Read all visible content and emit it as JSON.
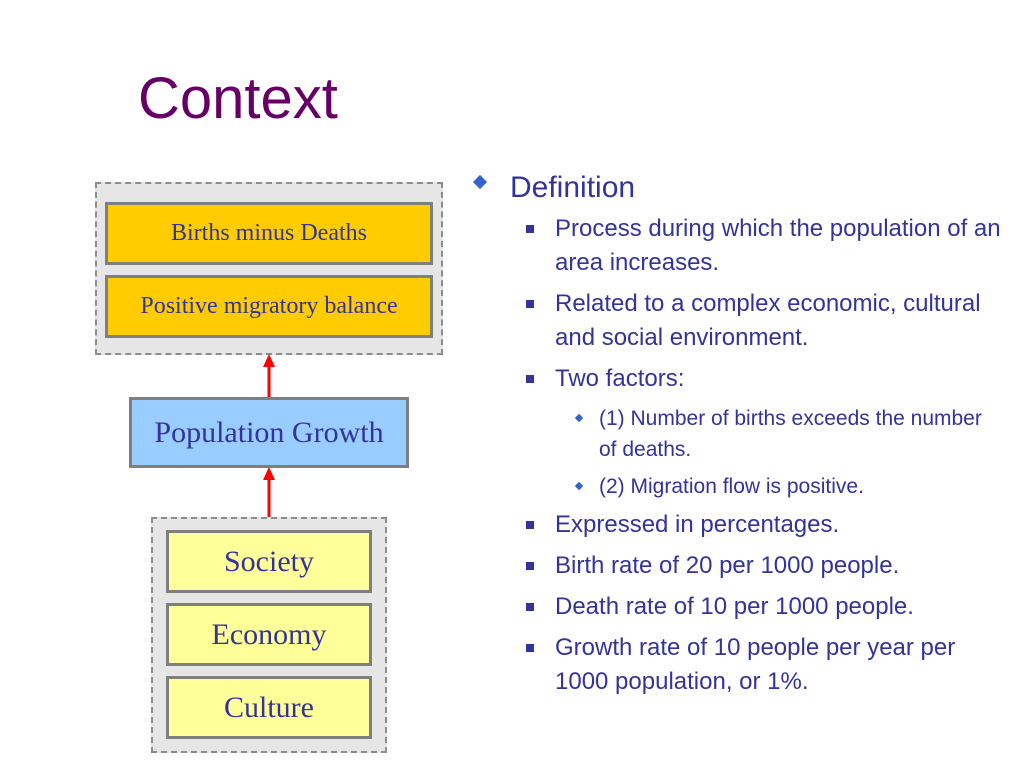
{
  "slide": {
    "title": "Context"
  },
  "diagram": {
    "top_group": {
      "items": [
        "Births minus Deaths",
        "Positive migratory balance"
      ]
    },
    "center": {
      "label": "Population Growth"
    },
    "bottom_group": {
      "items": [
        "Society",
        "Economy",
        "Culture"
      ]
    },
    "colors": {
      "top_boxes": "#ffcc00",
      "center_box": "#99ccff",
      "bottom_boxes": "#ffff99",
      "arrows": "#ff0000",
      "text": "#333399",
      "title": "#660066"
    }
  },
  "bullets": {
    "heading": "Definition",
    "items": [
      {
        "text": "Process during which the population of an area increases."
      },
      {
        "text": "Related to a complex economic, cultural and social environment."
      },
      {
        "text": "Two factors:"
      },
      {
        "text": "(1) Number of births exceeds the number of deaths."
      },
      {
        "text": "(2) Migration flow is positive."
      },
      {
        "text": "Expressed in percentages."
      },
      {
        "text": "Birth rate of 20 per 1000 people."
      },
      {
        "text": "Death rate of 10 per 1000 people."
      },
      {
        "text": "Growth rate of 10 people per year per 1000 population, or 1%."
      }
    ]
  }
}
